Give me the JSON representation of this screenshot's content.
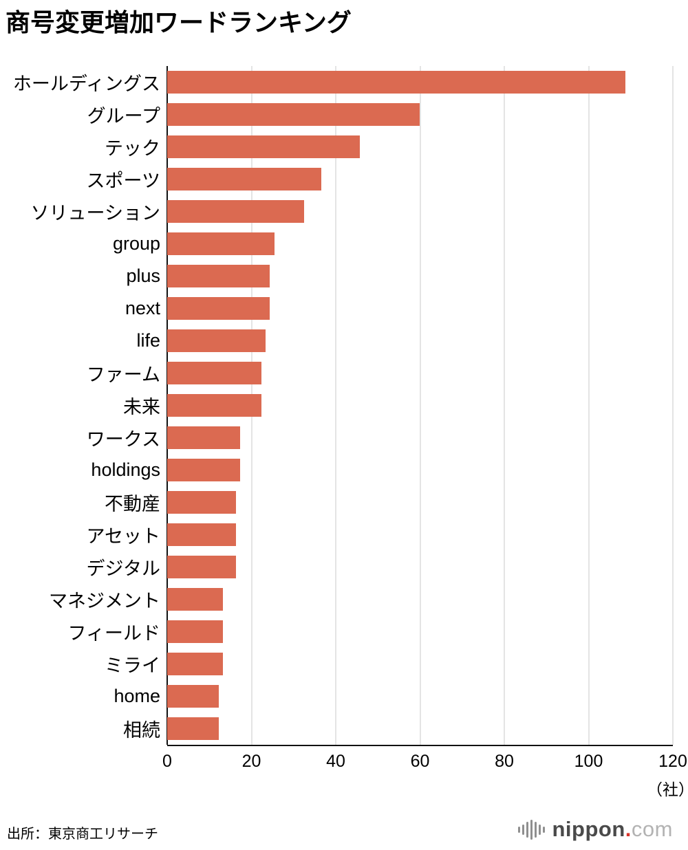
{
  "title": "商号変更増加ワードランキング",
  "source": "出所：東京商工リサーチ",
  "logo": {
    "name": "nippon",
    "dot": ".",
    "tld": "com"
  },
  "colors": {
    "bar": "#db6a51",
    "grid": "#c9c9c9",
    "axis": "#111111"
  },
  "chart_data": {
    "type": "bar",
    "orientation": "horizontal",
    "title": "商号変更増加ワードランキング",
    "categories": [
      "ホールディングス",
      "グループ",
      "テック",
      "スポーツ",
      "ソリューション",
      "group",
      "plus",
      "next",
      "life",
      "ファーム",
      "未来",
      "ワークス",
      "holdings",
      "不動産",
      "アセット",
      "デジタル",
      "マネジメント",
      "フィールド",
      "ミライ",
      "home",
      "相続"
    ],
    "values": [
      107,
      59,
      45,
      36,
      32,
      25,
      24,
      24,
      23,
      22,
      22,
      17,
      17,
      16,
      16,
      16,
      13,
      13,
      13,
      12,
      12
    ],
    "xlabel": "",
    "ylabel": "",
    "xlim": [
      0,
      120
    ],
    "xticks": [
      0,
      20,
      40,
      60,
      80,
      100,
      120
    ],
    "unit_label": "（社）",
    "grid": true,
    "legend": "none"
  }
}
